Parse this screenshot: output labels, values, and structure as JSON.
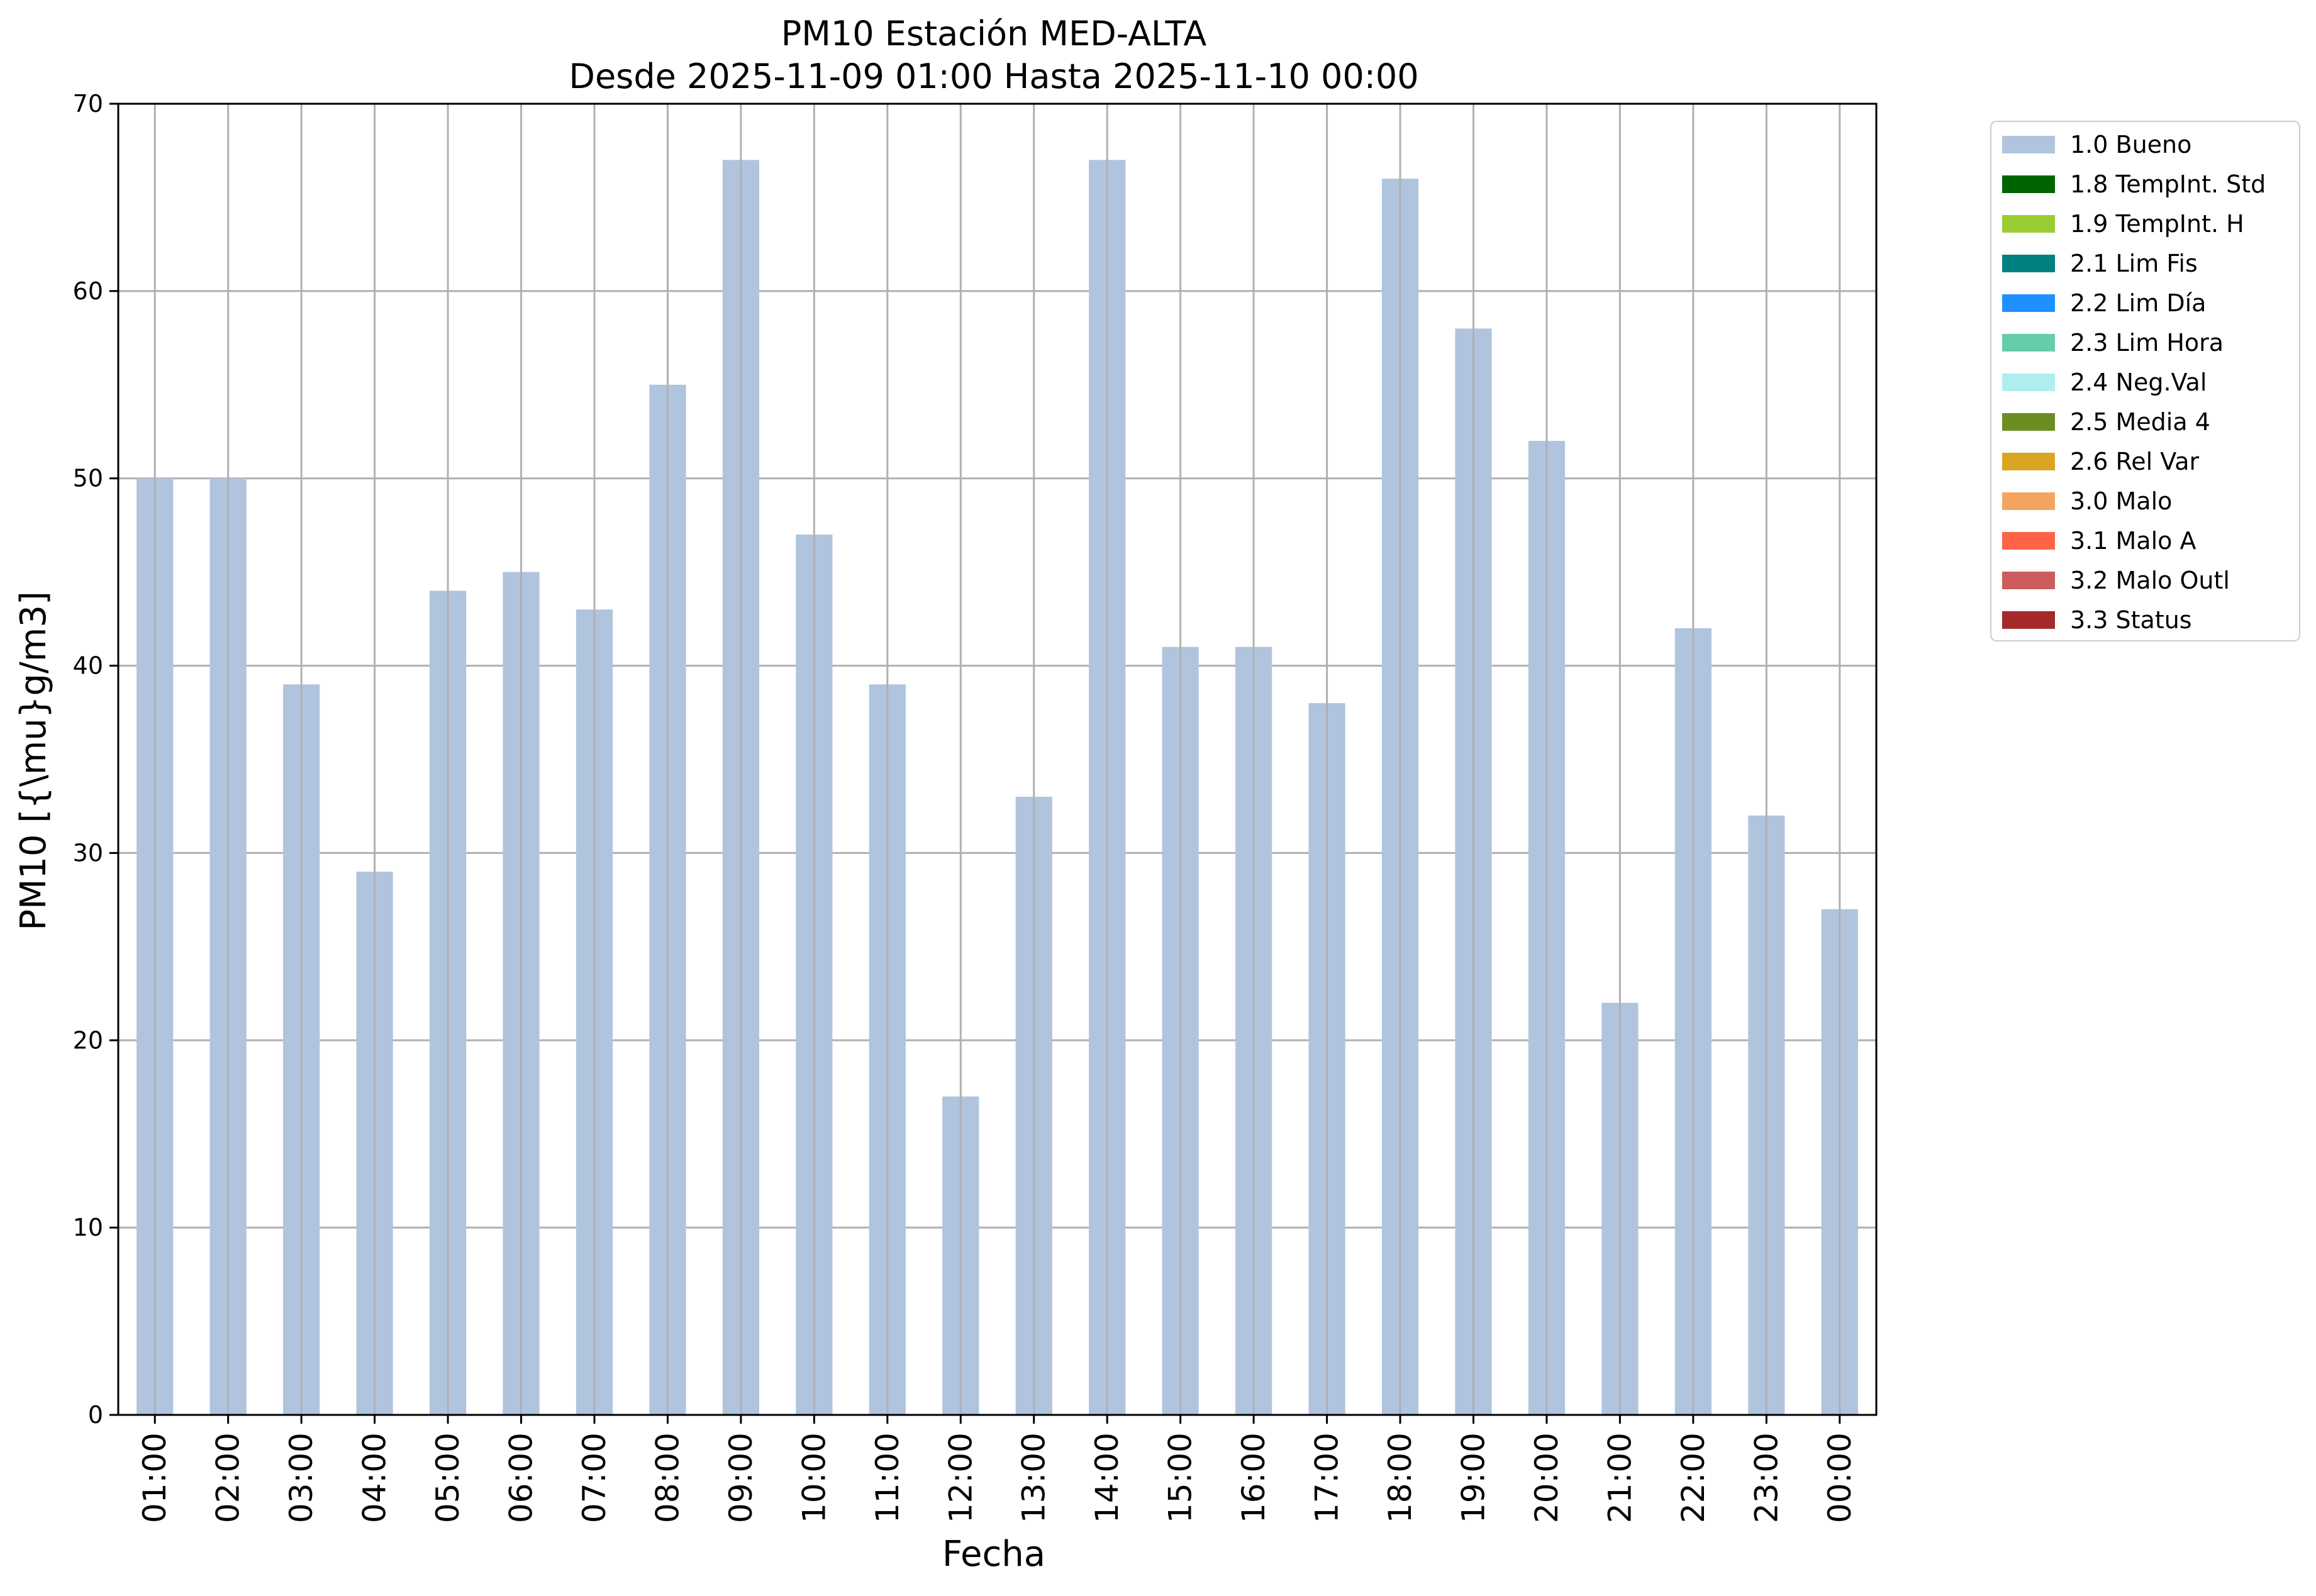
{
  "chart_data": {
    "type": "bar",
    "title": "PM10 Estación MED-ALTA",
    "subtitle": "Desde 2025-11-09 01:00 Hasta 2025-11-10 00:00",
    "xlabel": "Fecha",
    "ylabel": "PM10 [{\\mu}g/m3]",
    "ylim": [
      0,
      70
    ],
    "yticks": [
      0,
      10,
      20,
      30,
      40,
      50,
      60,
      70
    ],
    "grid": true,
    "legend_position": "outside top-right",
    "categories": [
      "01:00",
      "02:00",
      "03:00",
      "04:00",
      "05:00",
      "06:00",
      "07:00",
      "08:00",
      "09:00",
      "10:00",
      "11:00",
      "12:00",
      "13:00",
      "14:00",
      "15:00",
      "16:00",
      "17:00",
      "18:00",
      "19:00",
      "20:00",
      "21:00",
      "22:00",
      "23:00",
      "00:00"
    ],
    "series": [
      {
        "name": "1.0 Bueno",
        "color": "#b0c4de",
        "values": [
          50,
          50,
          39,
          29,
          44,
          45,
          43,
          55,
          67,
          47,
          39,
          17,
          33,
          67,
          41,
          41,
          38,
          66,
          58,
          52,
          22,
          42,
          32,
          27
        ]
      }
    ],
    "legend": [
      {
        "label": "1.0 Bueno",
        "color": "#b0c4de"
      },
      {
        "label": "1.8 TempInt. Std",
        "color": "#006400"
      },
      {
        "label": "1.9 TempInt. H",
        "color": "#9acd32"
      },
      {
        "label": "2.1 Lim Fis",
        "color": "#008080"
      },
      {
        "label": "2.2 Lim Día",
        "color": "#1e90ff"
      },
      {
        "label": "2.3 Lim Hora",
        "color": "#66cdaa"
      },
      {
        "label": "2.4 Neg.Val",
        "color": "#afeeee"
      },
      {
        "label": "2.5 Media 4",
        "color": "#6b8e23"
      },
      {
        "label": "2.6 Rel Var",
        "color": "#daa520"
      },
      {
        "label": "3.0 Malo",
        "color": "#f4a460"
      },
      {
        "label": "3.1 Malo A",
        "color": "#ff6347"
      },
      {
        "label": "3.2 Malo Outl",
        "color": "#cd5c5c"
      },
      {
        "label": "3.3 Status",
        "color": "#a52a2a"
      }
    ]
  }
}
